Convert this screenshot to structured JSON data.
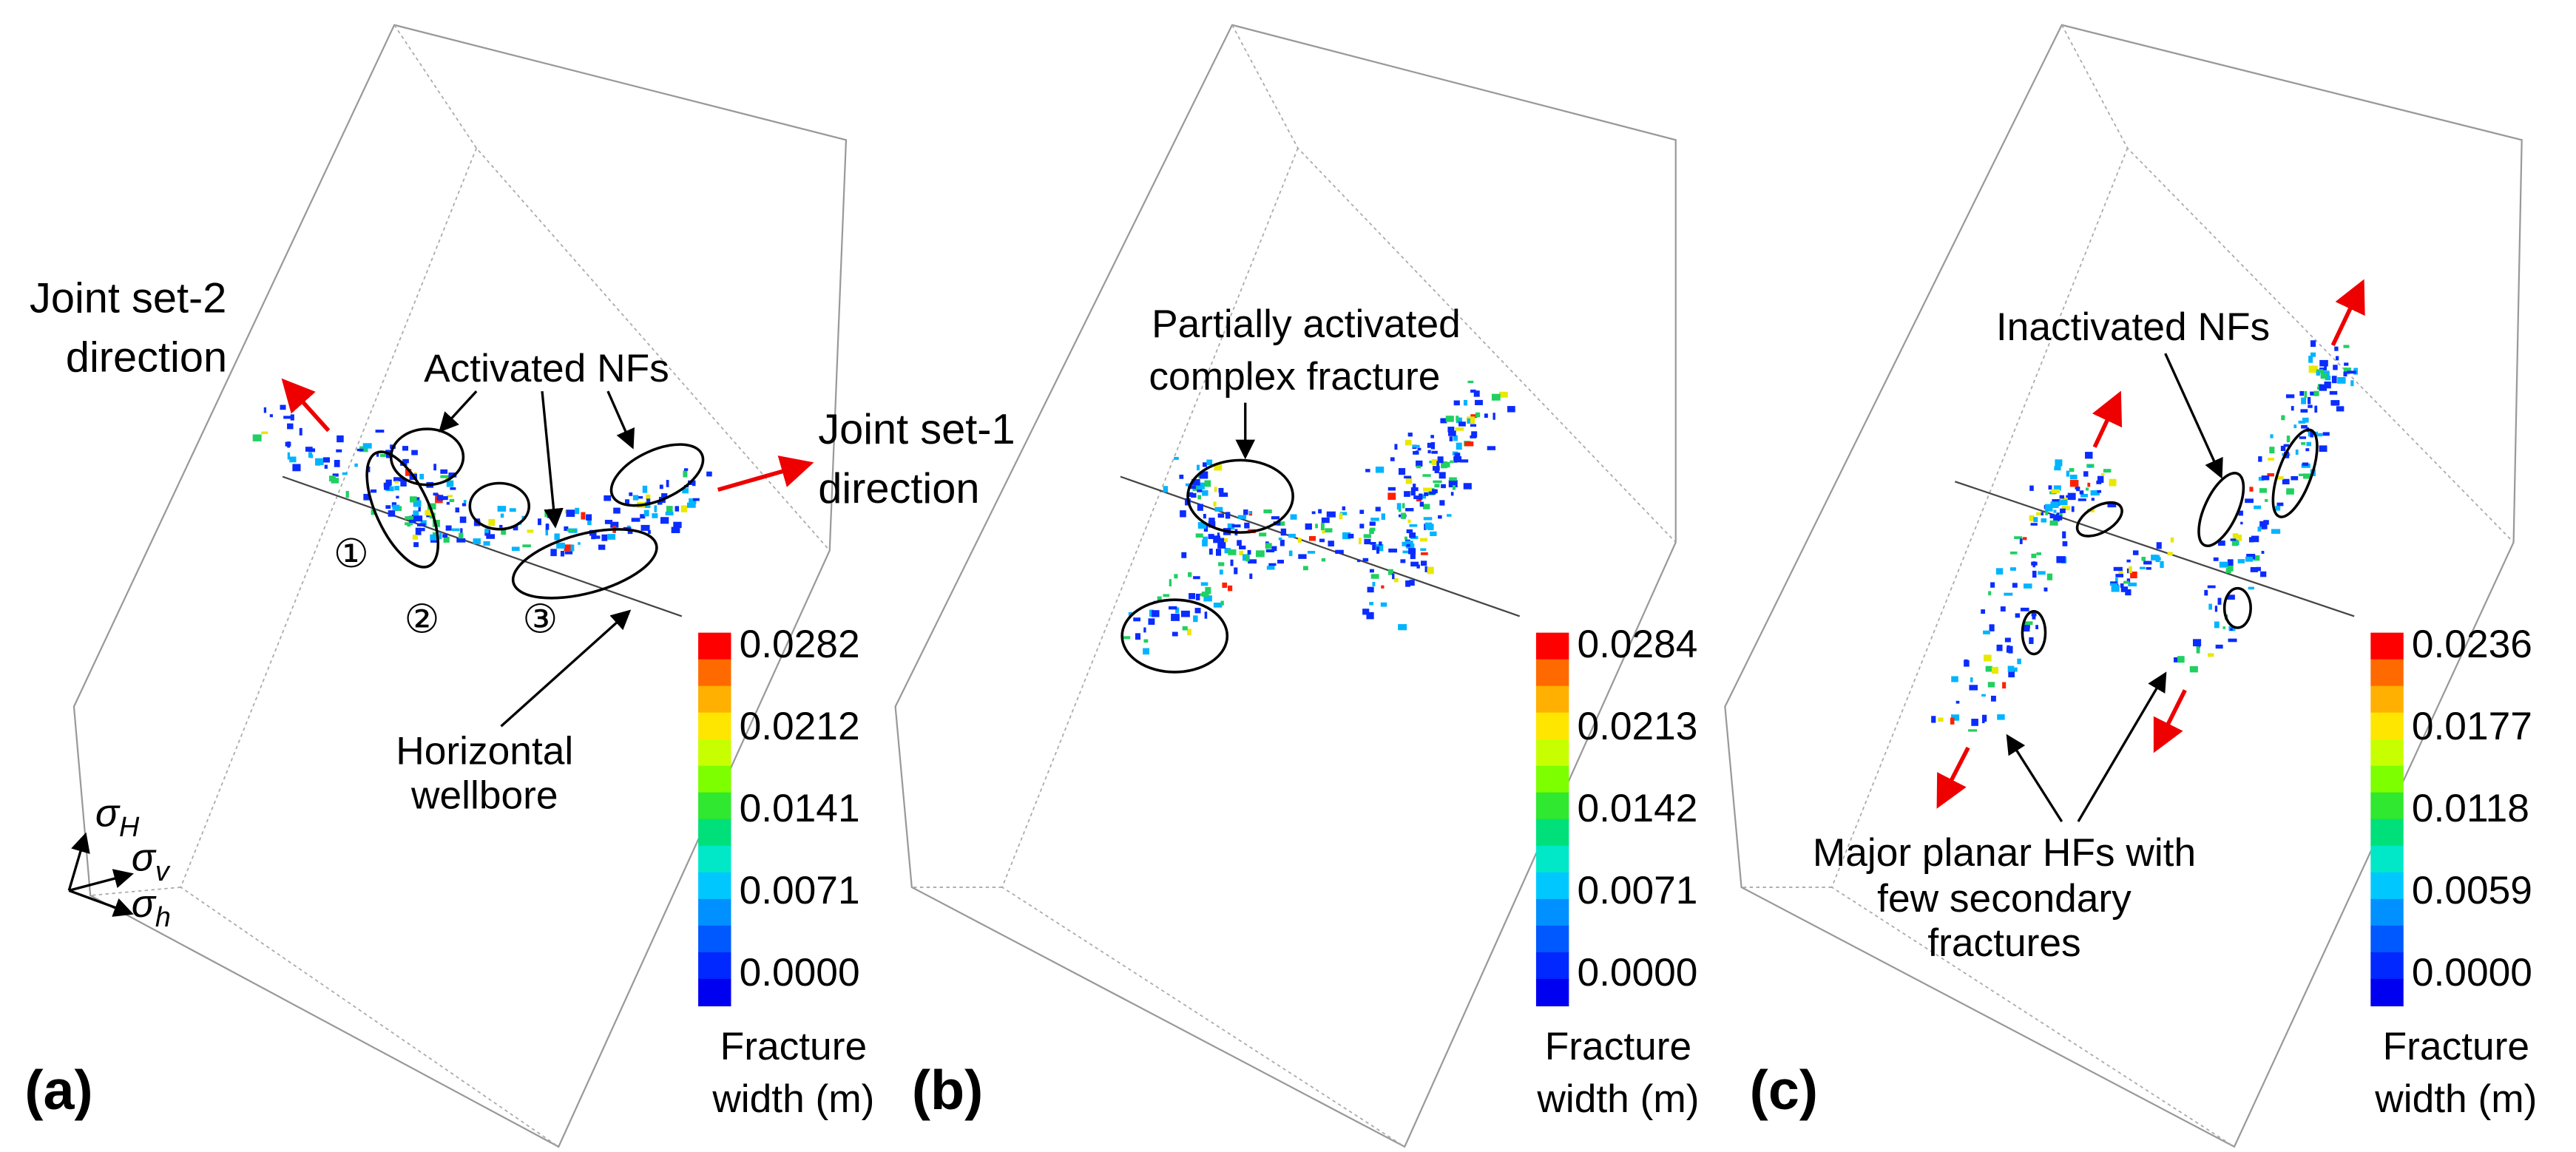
{
  "panels": [
    {
      "label": "(a)",
      "colorbar": {
        "ticks": [
          "0.0282",
          "0.0212",
          "0.0141",
          "0.0071",
          "0.0000"
        ],
        "title": [
          "Fracture",
          "width (m)"
        ]
      },
      "annotations": {
        "joint_set_2": [
          "Joint set-2",
          "direction"
        ],
        "activated": "Activated NFs",
        "joint_set_1": [
          "Joint set-1",
          "direction"
        ],
        "circled": [
          "①",
          "②",
          "③"
        ],
        "wellbore": [
          "Horizontal",
          "wellbore"
        ]
      },
      "stress_axes": [
        {
          "symbol": "σ",
          "sub": "H"
        },
        {
          "symbol": "σ",
          "sub": "v"
        },
        {
          "symbol": "σ",
          "sub": "h"
        }
      ]
    },
    {
      "label": "(b)",
      "colorbar": {
        "ticks": [
          "0.0284",
          "0.0213",
          "0.0142",
          "0.0071",
          "0.0000"
        ],
        "title": [
          "Fracture",
          "width (m)"
        ]
      },
      "annotations": {
        "complex": [
          "Partially activated",
          "complex fracture"
        ]
      }
    },
    {
      "label": "(c)",
      "colorbar": {
        "ticks": [
          "0.0236",
          "0.0177",
          "0.0118",
          "0.0059",
          "0.0000"
        ],
        "title": [
          "Fracture",
          "width (m)"
        ]
      },
      "annotations": {
        "inactivated": "Inactivated NFs",
        "major": [
          "Major planar HFs with",
          "few secondary",
          "fractures"
        ]
      }
    }
  ]
}
